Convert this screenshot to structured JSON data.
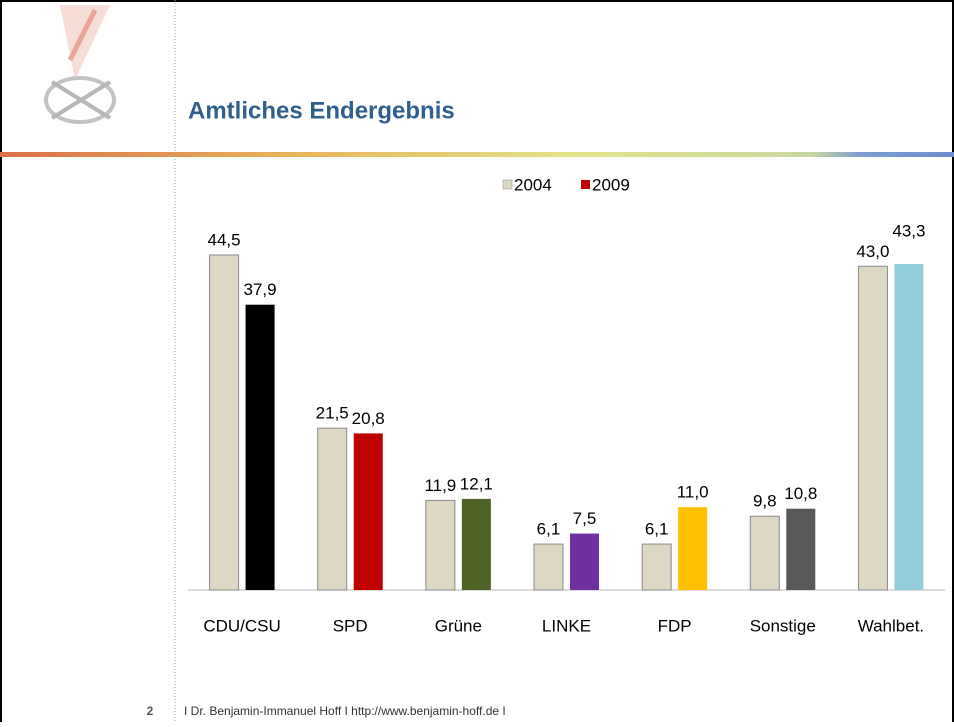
{
  "slide": {
    "title": "Amtliches Endergebnis",
    "page_number": "2",
    "footer": "I Dr. Benjamin-Immanuel Hoff I http://www.benjamin-hoff.de I"
  },
  "chart_data": {
    "type": "bar",
    "categories": [
      "CDU/CSU",
      "SPD",
      "Grüne",
      "LINKE",
      "FDP",
      "Sonstige",
      "Wahlbet."
    ],
    "series": [
      {
        "name": "2004",
        "color": "#ddd8c4",
        "values": [
          44.5,
          21.5,
          11.9,
          6.1,
          6.1,
          9.8,
          43.0
        ],
        "value_labels": [
          "44,5",
          "21,5",
          "11,9",
          "6,1",
          "6,1",
          "9,8",
          "43,0"
        ]
      },
      {
        "name": "2009",
        "color": "#c00000",
        "colors": [
          "#000000",
          "#c00000",
          "#4f6228",
          "#7030a0",
          "#ffc000",
          "#595959",
          "#92cddc"
        ],
        "values": [
          37.9,
          20.8,
          12.1,
          7.5,
          11.0,
          10.8,
          43.3
        ],
        "value_labels": [
          "37,9",
          "20,8",
          "12,1",
          "7,5",
          "11,0",
          "10,8",
          "43,3"
        ]
      }
    ],
    "legend": "top"
  }
}
